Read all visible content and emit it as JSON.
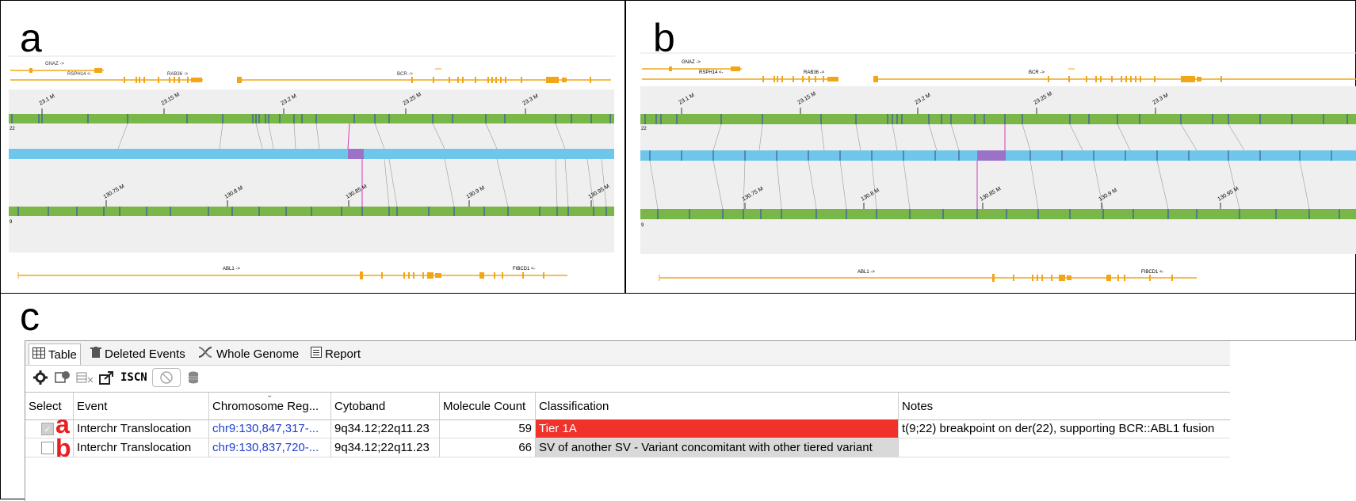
{
  "labels": {
    "a": "a",
    "b": "b",
    "c": "c",
    "row_a": "a",
    "row_b": "b"
  },
  "panel_a": {
    "genes_top": {
      "gnaz": "GNAZ ->",
      "rsph": "RSPH14 <-",
      "rab": "RAB36 ->",
      "bcr": "BCR ->"
    },
    "ticks_top": [
      "23.1 M",
      "23.15 M",
      "23.2 M",
      "23.25 M",
      "23.3 M"
    ],
    "chr_top": "22",
    "ticks_bottom": [
      "130.75 M",
      "130.8 M",
      "130.85 M",
      "130.9 M",
      "130.95 M"
    ],
    "chr_bottom": "9",
    "genes_bottom": {
      "abl1": "ABL1 ->",
      "fibcd1": "FIBCD1 <-"
    }
  },
  "panel_b": {
    "genes_top": {
      "gnaz": "GNAZ ->",
      "rsph": "RSPH14 <-",
      "rab": "RAB36 ->",
      "bcr": "BCR ->"
    },
    "ticks_top": [
      "23.1 M",
      "23.15 M",
      "23.2 M",
      "23.25 M",
      "23.3 M"
    ],
    "chr_top": "22",
    "ticks_bottom": [
      "130.75 M",
      "130.8 M",
      "130.85 M",
      "130.9 M",
      "130.95 M"
    ],
    "chr_bottom": "9",
    "genes_bottom": {
      "abl1": "ABL1 ->",
      "fibcd1": "FIBCD1 <-"
    }
  },
  "tabs": [
    {
      "label": "Table",
      "icon": "table-icon"
    },
    {
      "label": "Deleted Events",
      "icon": "trash-icon"
    },
    {
      "label": "Whole Genome",
      "icon": "dna-icon"
    },
    {
      "label": "Report",
      "icon": "report-icon"
    }
  ],
  "toolbar": {
    "iscn": "ISCN"
  },
  "table": {
    "headers": [
      "Select",
      "Event",
      "Chromosome Reg...",
      "Cytoband",
      "Molecule Count",
      "Classification",
      "Notes"
    ],
    "rows": [
      {
        "event": "Interchr Translocation",
        "region": "chr9:130,847,317-...",
        "cytoband": "9q34.12;22q11.23",
        "count": "59",
        "classification": "Tier 1A",
        "notes": "t(9;22) breakpoint on der(22), supporting BCR::ABL1 fusion",
        "checked": true
      },
      {
        "event": "Interchr Translocation",
        "region": "chr9:130,837,720-...",
        "cytoband": "9q34.12;22q11.23",
        "count": "66",
        "classification": "SV of another SV - Variant concomitant with other tiered variant",
        "notes": "",
        "checked": false
      }
    ]
  },
  "colors": {
    "chrom": "#7ab648",
    "map": "#6ec6ea",
    "gene": "#f2a516",
    "highlight": "#9b72c8",
    "link": "#d63bb0",
    "tier": "#f0322a",
    "sv": "#d9d9d9"
  }
}
